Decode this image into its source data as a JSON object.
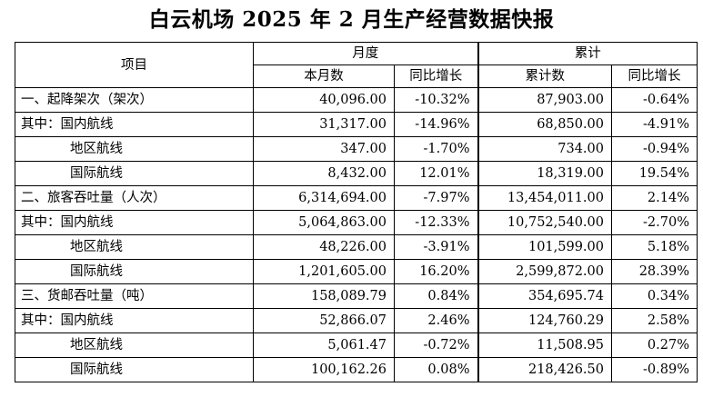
{
  "title": "白云机场 2025 年 2 月生产经营数据快报",
  "headers": {
    "item": "项目",
    "monthly": "月度",
    "cumulative": "累计",
    "this_month": "本月数",
    "yoy": "同比增长",
    "cum_count": "累计数",
    "cum_yoy": "同比增长"
  },
  "rows": [
    {
      "label": "一、起降架次（架次）",
      "month": "40,096.00",
      "month_yoy": "-10.32%",
      "cum": "87,903.00",
      "cum_yoy": "-0.64%"
    },
    {
      "label": "其中：国内航线",
      "month": "31,317.00",
      "month_yoy": "-14.96%",
      "cum": "68,850.00",
      "cum_yoy": "-4.91%"
    },
    {
      "label": "地区航线",
      "month": "347.00",
      "month_yoy": "-1.70%",
      "cum": "734.00",
      "cum_yoy": "-0.94%"
    },
    {
      "label": "国际航线",
      "month": "8,432.00",
      "month_yoy": "12.01%",
      "cum": "18,319.00",
      "cum_yoy": "19.54%"
    },
    {
      "label": "二、旅客吞吐量（人次）",
      "month": "6,314,694.00",
      "month_yoy": "-7.97%",
      "cum": "13,454,011.00",
      "cum_yoy": "2.14%"
    },
    {
      "label": "其中：国内航线",
      "month": "5,064,863.00",
      "month_yoy": "-12.33%",
      "cum": "10,752,540.00",
      "cum_yoy": "-2.70%"
    },
    {
      "label": "地区航线",
      "month": "48,226.00",
      "month_yoy": "-3.91%",
      "cum": "101,599.00",
      "cum_yoy": "5.18%"
    },
    {
      "label": "国际航线",
      "month": "1,201,605.00",
      "month_yoy": "16.20%",
      "cum": "2,599,872.00",
      "cum_yoy": "28.39%"
    },
    {
      "label": "三、货邮吞吐量（吨）",
      "month": "158,089.79",
      "month_yoy": "0.84%",
      "cum": "354,695.74",
      "cum_yoy": "0.34%"
    },
    {
      "label": "其中：国内航线",
      "month": "52,866.07",
      "month_yoy": "2.46%",
      "cum": "124,760.29",
      "cum_yoy": "2.58%"
    },
    {
      "label": "地区航线",
      "month": "5,061.47",
      "month_yoy": "-0.72%",
      "cum": "11,508.95",
      "cum_yoy": "0.27%"
    },
    {
      "label": "国际航线",
      "month": "100,162.26",
      "month_yoy": "0.08%",
      "cum": "218,426.50",
      "cum_yoy": "-0.89%"
    }
  ]
}
